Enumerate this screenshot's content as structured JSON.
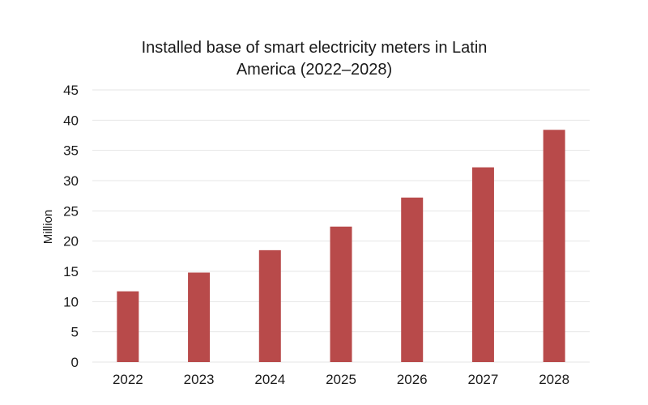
{
  "chart_data": {
    "type": "bar",
    "title_lines": [
      "Installed base of smart electricity meters in Latin",
      "America (2022–2028)"
    ],
    "xlabel": "",
    "ylabel": "Million",
    "ylim": [
      0,
      45
    ],
    "yticks": [
      0,
      5,
      10,
      15,
      20,
      25,
      30,
      35,
      40,
      45
    ],
    "categories": [
      "2022",
      "2023",
      "2024",
      "2025",
      "2026",
      "2027",
      "2028"
    ],
    "values": [
      11.7,
      14.8,
      18.5,
      22.4,
      27.2,
      32.2,
      38.4
    ],
    "grid": true,
    "legend": "none",
    "colors": {
      "bar": "#b84a4a",
      "grid": "#e6e6e6",
      "text": "#1a1a1a"
    }
  }
}
